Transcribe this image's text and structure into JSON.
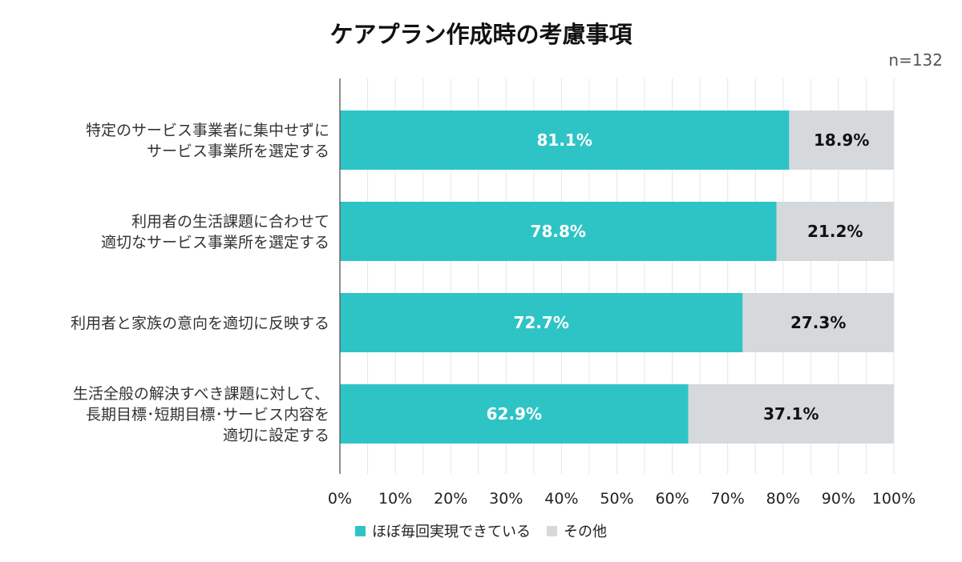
{
  "chart_data": {
    "type": "bar",
    "orientation": "horizontal",
    "stacked": true,
    "title": "ケアプラン作成時の考慮事項",
    "sample_note": "n=132",
    "categories": [
      [
        "特定のサービス事業者に集中せずに",
        "サービス事業所を選定する"
      ],
      [
        "利用者の生活課題に合わせて",
        "適切なサービス事業所を選定する"
      ],
      [
        "利用者と家族の意向を適切に反映する"
      ],
      [
        "生活全般の解決すべき課題に対して、",
        "長期目標･短期目標･サービス内容を",
        "適切に設定する"
      ]
    ],
    "series": [
      {
        "name": "ほぼ毎回実現できている",
        "values": [
          81.1,
          78.8,
          72.7,
          62.9
        ],
        "labels": [
          "81.1%",
          "78.8%",
          "72.7%",
          "62.9%"
        ],
        "color": "#2ec4c6",
        "label_color": "#ffffff"
      },
      {
        "name": "その他",
        "values": [
          18.9,
          21.2,
          27.3,
          37.1
        ],
        "labels": [
          "18.9%",
          "21.2%",
          "27.3%",
          "37.1%"
        ],
        "color": "#d6d9dc",
        "label_color": "#111111"
      }
    ],
    "xlim": [
      0,
      100
    ],
    "xticks": [
      "0%",
      "10%",
      "20%",
      "30%",
      "40%",
      "50%",
      "60%",
      "70%",
      "80%",
      "90%",
      "100%"
    ],
    "grid": true,
    "legend_position": "bottom-center"
  }
}
